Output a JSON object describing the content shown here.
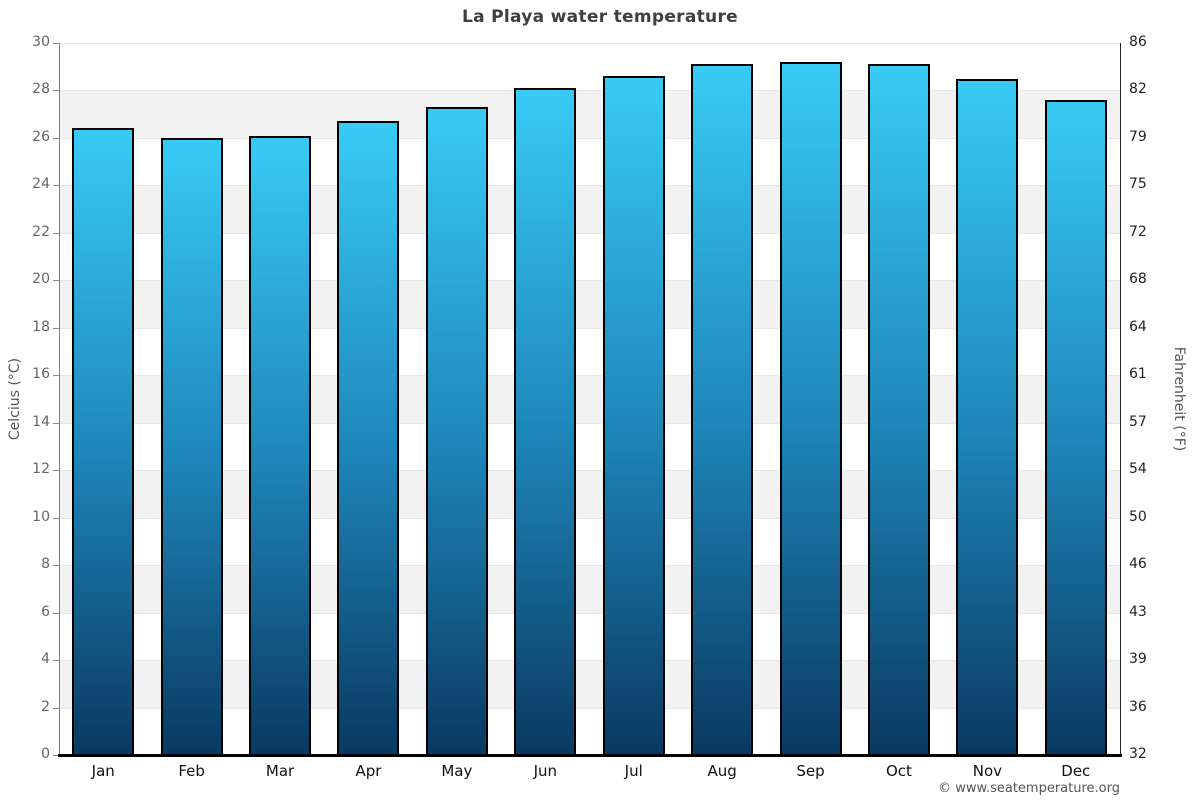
{
  "header": {
    "title": "La Playa water temperature"
  },
  "footer": {
    "credit": "© www.seatemperature.org"
  },
  "chart_data": {
    "type": "bar",
    "title": "La Playa water temperature",
    "categories": [
      "Jan",
      "Feb",
      "Mar",
      "Apr",
      "May",
      "Jun",
      "Jul",
      "Aug",
      "Sep",
      "Oct",
      "Nov",
      "Dec"
    ],
    "values": [
      26.4,
      26.0,
      26.1,
      26.7,
      27.3,
      28.1,
      28.6,
      29.1,
      29.2,
      29.1,
      28.5,
      27.6
    ],
    "unit": "°C",
    "ylabel_left": "Celcius (°C)",
    "ylabel_right": "Fahrenheit (°F)",
    "ylim": [
      0,
      30
    ],
    "y_ticks_celsius": [
      0,
      2,
      4,
      6,
      8,
      10,
      12,
      14,
      16,
      18,
      20,
      22,
      24,
      26,
      28,
      30
    ],
    "y_ticks_fahrenheit": [
      32,
      36,
      39,
      43,
      46,
      50,
      54,
      57,
      61,
      64,
      68,
      72,
      75,
      79,
      82,
      86
    ],
    "grid": "alternating-horizontal-bands",
    "legend": "none",
    "colors": {
      "bar_gradient_top": "#38cbf5",
      "bar_gradient_mid": "#1e86b9",
      "bar_gradient_bottom": "#0a3961",
      "bar_border": "#000000",
      "band_gray": "#f2f2f2",
      "gridline": "#e8e8e8",
      "baseline": "#000000",
      "tick_label_left": "#666666",
      "tick_label_right": "#222222",
      "title": "#3f3f3f"
    }
  }
}
